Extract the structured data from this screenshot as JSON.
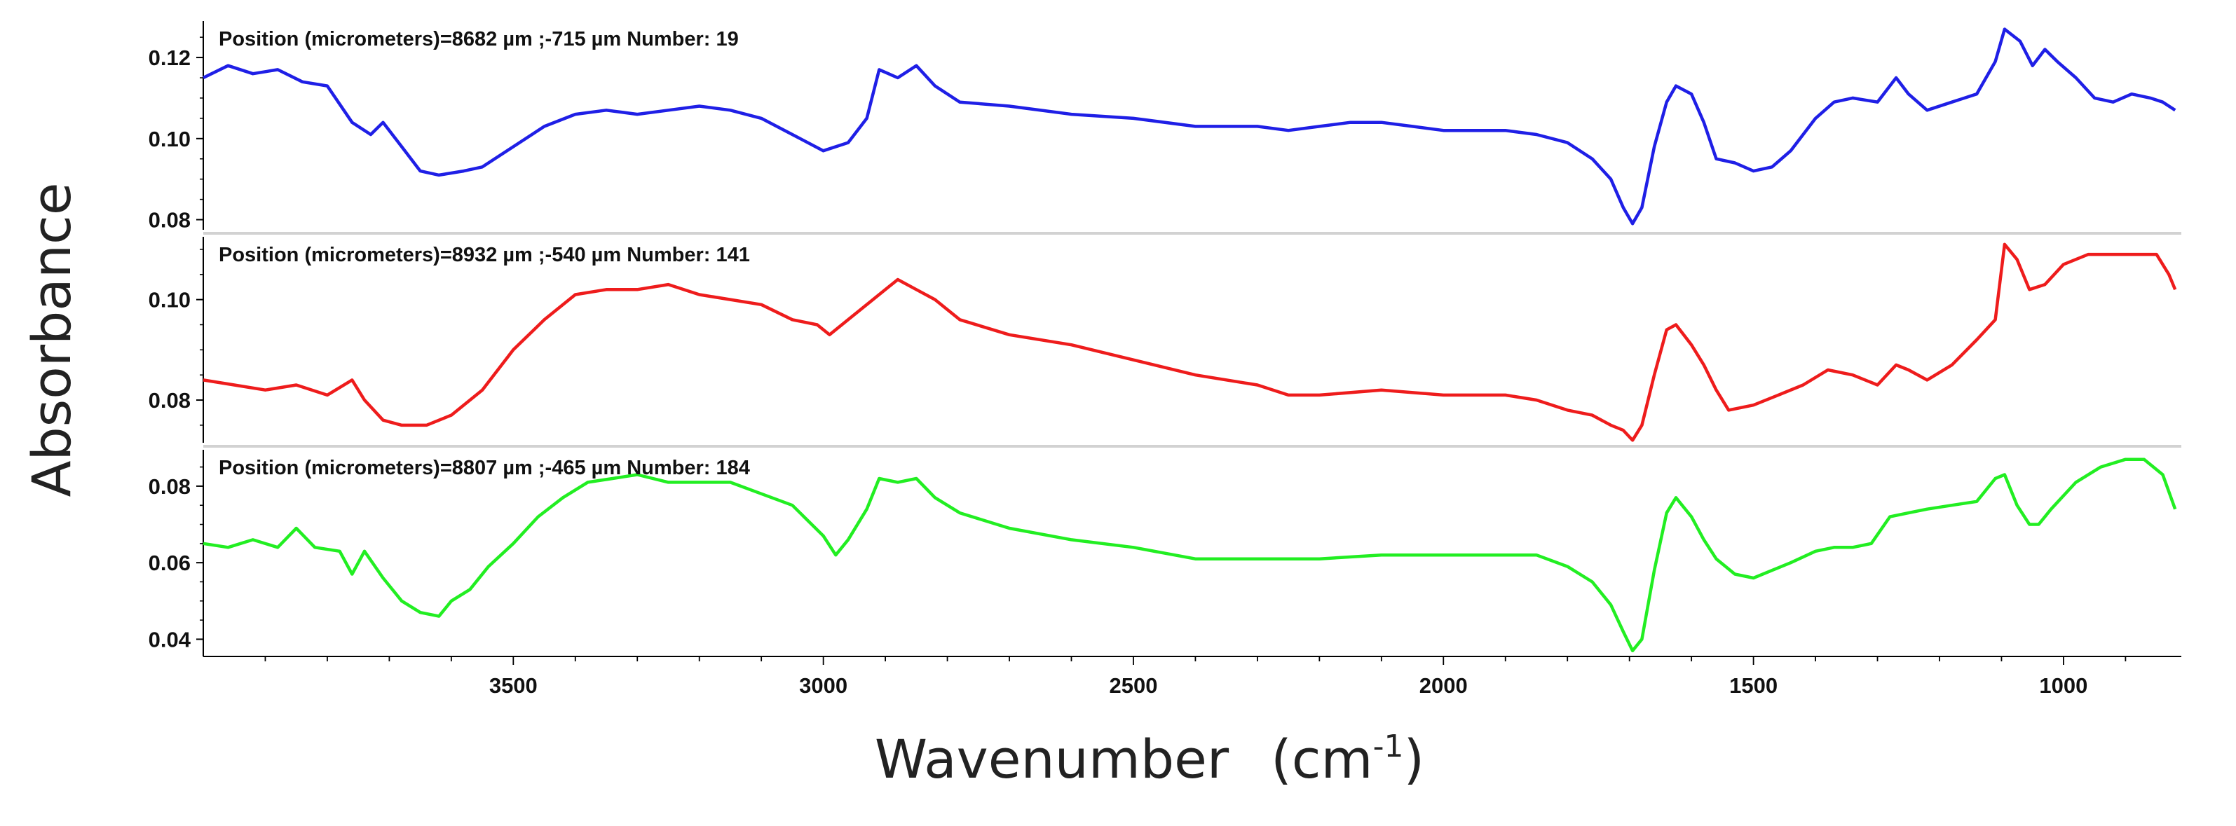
{
  "chart_data": {
    "type": "line",
    "xlabel": "Wavenumber",
    "xlabel_unit_base": "(cm",
    "xlabel_unit_exp": "-1",
    "xlabel_unit_close": ")",
    "ylabel": "Absorbance",
    "xlim": [
      4000,
      810
    ],
    "x_ticks": [
      {
        "value": 3500,
        "label": "3500"
      },
      {
        "value": 3000,
        "label": "3000"
      },
      {
        "value": 2500,
        "label": "2500"
      },
      {
        "value": 2000,
        "label": "2000"
      },
      {
        "value": 1500,
        "label": "1500"
      },
      {
        "value": 1000,
        "label": "1000"
      }
    ],
    "panels": [
      {
        "name": "spectrum-19",
        "title": "Position (micrometers)=8682 µm ;-715 µm  Number: 19",
        "color": "#1f1fe6",
        "ylim": [
          0.0775,
          0.129
        ],
        "y_ticks": [
          {
            "value": 0.08,
            "label": "0.08"
          },
          {
            "value": 0.1,
            "label": "0.10"
          },
          {
            "value": 0.12,
            "label": "0.12"
          }
        ],
        "points": [
          [
            4000,
            0.115
          ],
          [
            3960,
            0.118
          ],
          [
            3920,
            0.116
          ],
          [
            3880,
            0.117
          ],
          [
            3840,
            0.114
          ],
          [
            3800,
            0.113
          ],
          [
            3760,
            0.104
          ],
          [
            3730,
            0.101
          ],
          [
            3710,
            0.104
          ],
          [
            3680,
            0.098
          ],
          [
            3650,
            0.092
          ],
          [
            3620,
            0.091
          ],
          [
            3580,
            0.092
          ],
          [
            3550,
            0.093
          ],
          [
            3500,
            0.098
          ],
          [
            3450,
            0.103
          ],
          [
            3400,
            0.106
          ],
          [
            3350,
            0.107
          ],
          [
            3300,
            0.106
          ],
          [
            3250,
            0.107
          ],
          [
            3200,
            0.108
          ],
          [
            3150,
            0.107
          ],
          [
            3100,
            0.105
          ],
          [
            3050,
            0.101
          ],
          [
            3000,
            0.097
          ],
          [
            2960,
            0.099
          ],
          [
            2930,
            0.105
          ],
          [
            2910,
            0.117
          ],
          [
            2880,
            0.115
          ],
          [
            2850,
            0.118
          ],
          [
            2820,
            0.113
          ],
          [
            2780,
            0.109
          ],
          [
            2700,
            0.108
          ],
          [
            2600,
            0.106
          ],
          [
            2500,
            0.105
          ],
          [
            2400,
            0.103
          ],
          [
            2300,
            0.103
          ],
          [
            2250,
            0.102
          ],
          [
            2200,
            0.103
          ],
          [
            2150,
            0.104
          ],
          [
            2100,
            0.104
          ],
          [
            2050,
            0.103
          ],
          [
            2000,
            0.102
          ],
          [
            1950,
            0.102
          ],
          [
            1900,
            0.102
          ],
          [
            1850,
            0.101
          ],
          [
            1800,
            0.099
          ],
          [
            1760,
            0.095
          ],
          [
            1730,
            0.09
          ],
          [
            1710,
            0.083
          ],
          [
            1695,
            0.079
          ],
          [
            1680,
            0.083
          ],
          [
            1660,
            0.098
          ],
          [
            1640,
            0.109
          ],
          [
            1625,
            0.113
          ],
          [
            1600,
            0.111
          ],
          [
            1580,
            0.104
          ],
          [
            1560,
            0.095
          ],
          [
            1530,
            0.094
          ],
          [
            1500,
            0.092
          ],
          [
            1470,
            0.093
          ],
          [
            1440,
            0.097
          ],
          [
            1400,
            0.105
          ],
          [
            1370,
            0.109
          ],
          [
            1340,
            0.11
          ],
          [
            1300,
            0.109
          ],
          [
            1270,
            0.115
          ],
          [
            1250,
            0.111
          ],
          [
            1220,
            0.107
          ],
          [
            1180,
            0.109
          ],
          [
            1140,
            0.111
          ],
          [
            1110,
            0.119
          ],
          [
            1095,
            0.127
          ],
          [
            1070,
            0.124
          ],
          [
            1050,
            0.118
          ],
          [
            1030,
            0.122
          ],
          [
            1010,
            0.119
          ],
          [
            980,
            0.115
          ],
          [
            950,
            0.11
          ],
          [
            920,
            0.109
          ],
          [
            890,
            0.111
          ],
          [
            860,
            0.11
          ],
          [
            840,
            0.109
          ],
          [
            820,
            0.107
          ]
        ]
      },
      {
        "name": "spectrum-141",
        "title": "Position (micrometers)=8932 µm ;-540 µm  Number: 141",
        "color": "#ee1c1c",
        "ylim": [
          0.0715,
          0.1125
        ],
        "y_ticks": [
          {
            "value": 0.08,
            "label": "0.08"
          },
          {
            "value": 0.1,
            "label": "0.10"
          }
        ],
        "points": [
          [
            4000,
            0.084
          ],
          [
            3950,
            0.083
          ],
          [
            3900,
            0.082
          ],
          [
            3850,
            0.083
          ],
          [
            3800,
            0.081
          ],
          [
            3760,
            0.084
          ],
          [
            3740,
            0.08
          ],
          [
            3710,
            0.076
          ],
          [
            3680,
            0.075
          ],
          [
            3640,
            0.075
          ],
          [
            3600,
            0.077
          ],
          [
            3550,
            0.082
          ],
          [
            3500,
            0.09
          ],
          [
            3450,
            0.096
          ],
          [
            3400,
            0.101
          ],
          [
            3350,
            0.102
          ],
          [
            3300,
            0.102
          ],
          [
            3250,
            0.103
          ],
          [
            3200,
            0.101
          ],
          [
            3150,
            0.1
          ],
          [
            3100,
            0.099
          ],
          [
            3050,
            0.096
          ],
          [
            3010,
            0.095
          ],
          [
            2990,
            0.093
          ],
          [
            2960,
            0.096
          ],
          [
            2920,
            0.1
          ],
          [
            2880,
            0.104
          ],
          [
            2850,
            0.102
          ],
          [
            2820,
            0.1
          ],
          [
            2780,
            0.096
          ],
          [
            2700,
            0.093
          ],
          [
            2600,
            0.091
          ],
          [
            2500,
            0.088
          ],
          [
            2400,
            0.085
          ],
          [
            2300,
            0.083
          ],
          [
            2250,
            0.081
          ],
          [
            2200,
            0.081
          ],
          [
            2100,
            0.082
          ],
          [
            2000,
            0.081
          ],
          [
            1900,
            0.081
          ],
          [
            1850,
            0.08
          ],
          [
            1800,
            0.078
          ],
          [
            1760,
            0.077
          ],
          [
            1730,
            0.075
          ],
          [
            1710,
            0.074
          ],
          [
            1695,
            0.072
          ],
          [
            1680,
            0.075
          ],
          [
            1660,
            0.085
          ],
          [
            1640,
            0.094
          ],
          [
            1625,
            0.095
          ],
          [
            1600,
            0.091
          ],
          [
            1580,
            0.087
          ],
          [
            1560,
            0.082
          ],
          [
            1540,
            0.078
          ],
          [
            1500,
            0.079
          ],
          [
            1460,
            0.081
          ],
          [
            1420,
            0.083
          ],
          [
            1380,
            0.086
          ],
          [
            1340,
            0.085
          ],
          [
            1300,
            0.083
          ],
          [
            1270,
            0.087
          ],
          [
            1250,
            0.086
          ],
          [
            1220,
            0.084
          ],
          [
            1180,
            0.087
          ],
          [
            1140,
            0.092
          ],
          [
            1110,
            0.096
          ],
          [
            1095,
            0.111
          ],
          [
            1075,
            0.108
          ],
          [
            1055,
            0.102
          ],
          [
            1030,
            0.103
          ],
          [
            1000,
            0.107
          ],
          [
            960,
            0.109
          ],
          [
            920,
            0.109
          ],
          [
            880,
            0.109
          ],
          [
            850,
            0.109
          ],
          [
            830,
            0.105
          ],
          [
            820,
            0.102
          ]
        ]
      },
      {
        "name": "spectrum-184",
        "title": "Position (micrometers)=8807 µm ;-465 µm  Number: 184",
        "color": "#22ee22",
        "ylim": [
          0.0355,
          0.0895
        ],
        "y_ticks": [
          {
            "value": 0.04,
            "label": "0.04"
          },
          {
            "value": 0.06,
            "label": "0.06"
          },
          {
            "value": 0.08,
            "label": "0.08"
          }
        ],
        "points": [
          [
            4000,
            0.065
          ],
          [
            3960,
            0.064
          ],
          [
            3920,
            0.066
          ],
          [
            3880,
            0.064
          ],
          [
            3850,
            0.069
          ],
          [
            3820,
            0.064
          ],
          [
            3780,
            0.063
          ],
          [
            3760,
            0.057
          ],
          [
            3740,
            0.063
          ],
          [
            3710,
            0.056
          ],
          [
            3680,
            0.05
          ],
          [
            3650,
            0.047
          ],
          [
            3620,
            0.046
          ],
          [
            3600,
            0.05
          ],
          [
            3570,
            0.053
          ],
          [
            3540,
            0.059
          ],
          [
            3500,
            0.065
          ],
          [
            3460,
            0.072
          ],
          [
            3420,
            0.077
          ],
          [
            3380,
            0.081
          ],
          [
            3340,
            0.082
          ],
          [
            3300,
            0.083
          ],
          [
            3250,
            0.081
          ],
          [
            3200,
            0.081
          ],
          [
            3150,
            0.081
          ],
          [
            3100,
            0.078
          ],
          [
            3050,
            0.075
          ],
          [
            3000,
            0.067
          ],
          [
            2980,
            0.062
          ],
          [
            2960,
            0.066
          ],
          [
            2930,
            0.074
          ],
          [
            2910,
            0.082
          ],
          [
            2880,
            0.081
          ],
          [
            2850,
            0.082
          ],
          [
            2820,
            0.077
          ],
          [
            2780,
            0.073
          ],
          [
            2700,
            0.069
          ],
          [
            2600,
            0.066
          ],
          [
            2500,
            0.064
          ],
          [
            2400,
            0.061
          ],
          [
            2300,
            0.061
          ],
          [
            2200,
            0.061
          ],
          [
            2100,
            0.062
          ],
          [
            2000,
            0.062
          ],
          [
            1900,
            0.062
          ],
          [
            1850,
            0.062
          ],
          [
            1800,
            0.059
          ],
          [
            1760,
            0.055
          ],
          [
            1730,
            0.049
          ],
          [
            1710,
            0.042
          ],
          [
            1695,
            0.037
          ],
          [
            1680,
            0.04
          ],
          [
            1660,
            0.058
          ],
          [
            1640,
            0.073
          ],
          [
            1625,
            0.077
          ],
          [
            1600,
            0.072
          ],
          [
            1580,
            0.066
          ],
          [
            1560,
            0.061
          ],
          [
            1530,
            0.057
          ],
          [
            1500,
            0.056
          ],
          [
            1470,
            0.058
          ],
          [
            1440,
            0.06
          ],
          [
            1400,
            0.063
          ],
          [
            1370,
            0.064
          ],
          [
            1340,
            0.064
          ],
          [
            1310,
            0.065
          ],
          [
            1280,
            0.072
          ],
          [
            1250,
            0.073
          ],
          [
            1220,
            0.074
          ],
          [
            1180,
            0.075
          ],
          [
            1140,
            0.076
          ],
          [
            1110,
            0.082
          ],
          [
            1095,
            0.083
          ],
          [
            1075,
            0.075
          ],
          [
            1055,
            0.07
          ],
          [
            1040,
            0.07
          ],
          [
            1020,
            0.074
          ],
          [
            980,
            0.081
          ],
          [
            940,
            0.085
          ],
          [
            900,
            0.087
          ],
          [
            870,
            0.087
          ],
          [
            840,
            0.083
          ],
          [
            820,
            0.074
          ]
        ]
      }
    ]
  }
}
